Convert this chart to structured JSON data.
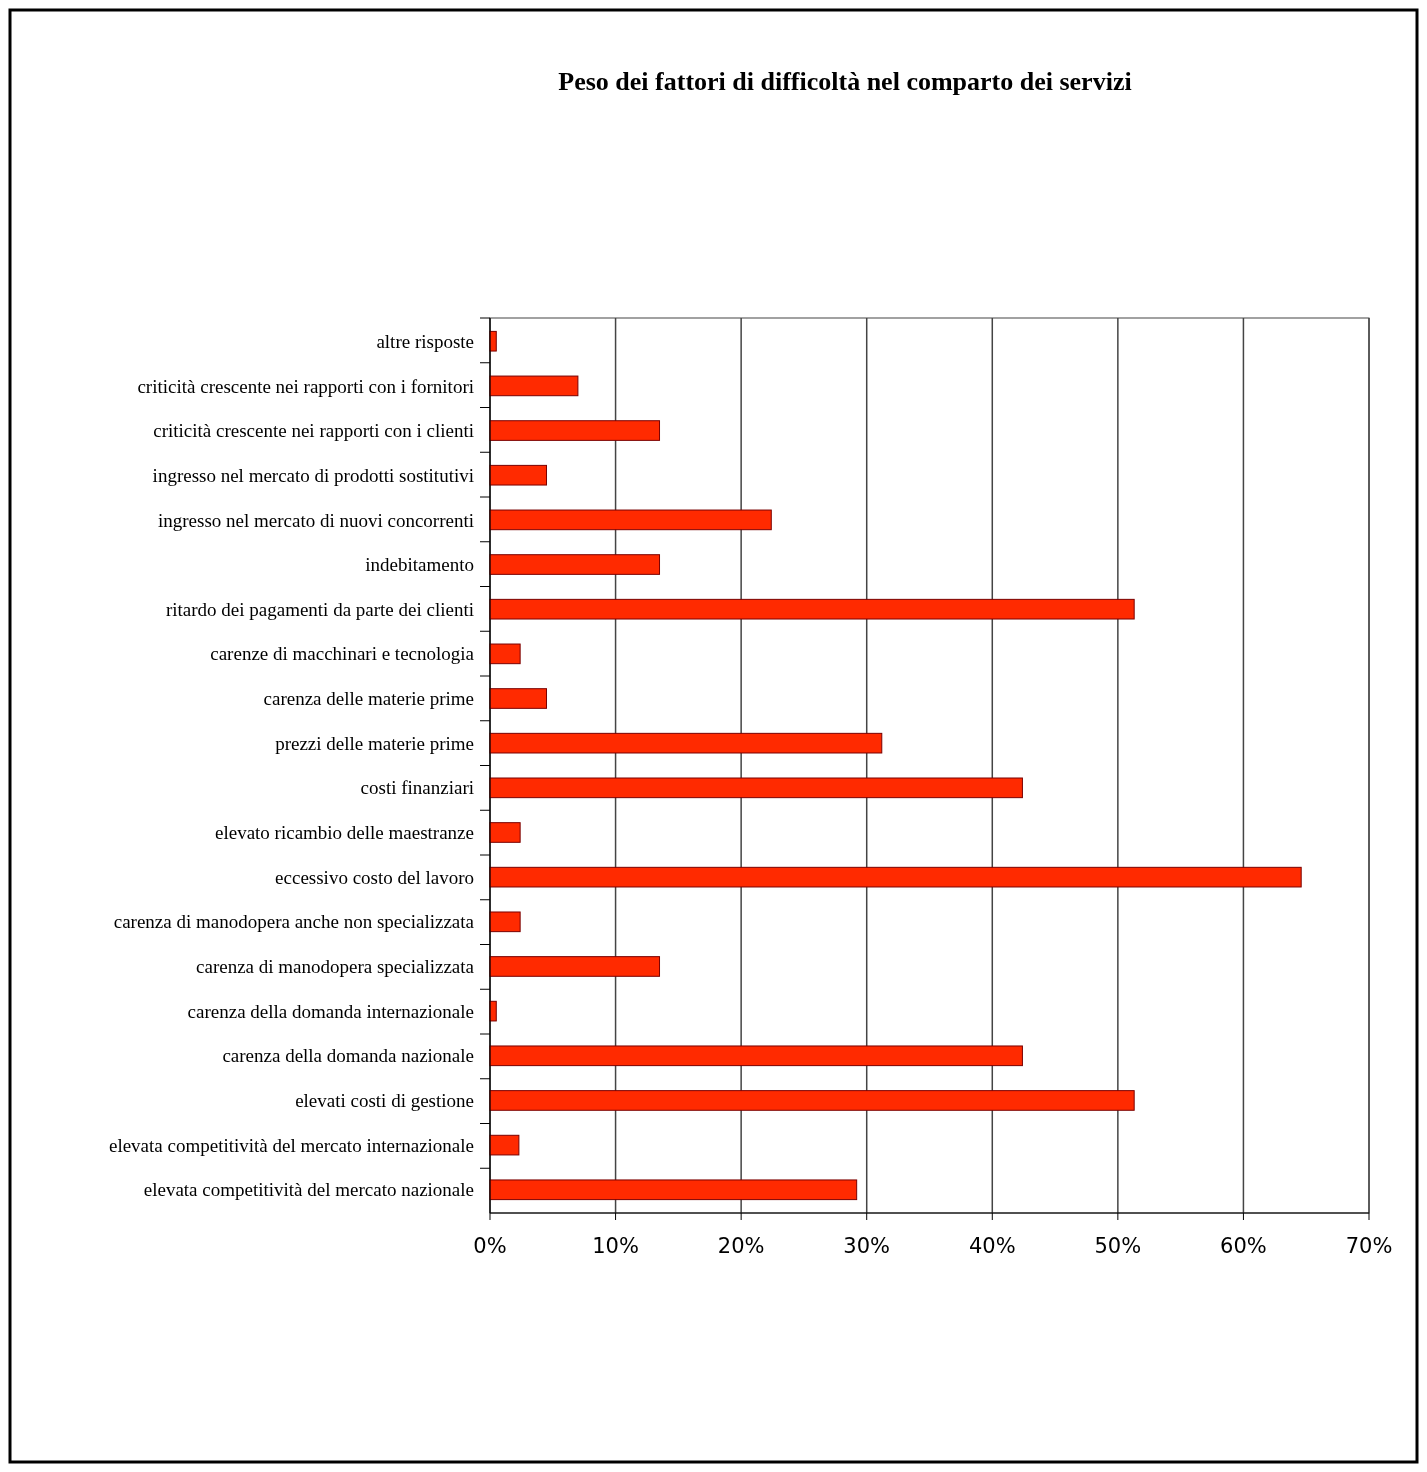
{
  "chart_data": {
    "type": "bar",
    "orientation": "horizontal",
    "title": "Peso dei fattori di difficoltà nel comparto dei servizi",
    "categories": [
      "altre risposte",
      "criticità crescente nei rapporti con i fornitori",
      "criticità crescente nei rapporti con i clienti",
      "ingresso nel mercato di prodotti sostitutivi",
      "ingresso nel mercato di nuovi concorrenti",
      "indebitamento",
      "ritardo dei pagamenti da parte dei clienti",
      "carenze di macchinari e tecnologia",
      "carenza delle materie prime",
      "prezzi delle materie prime",
      "costi finanziari",
      "elevato ricambio delle maestranze",
      "eccessivo costo del lavoro",
      "carenza di manodopera anche non specializzata",
      "carenza di manodopera specializzata",
      "carenza della domanda internazionale",
      "carenza della domanda nazionale",
      "elevati costi di gestione",
      "elevata competitività del mercato internazionale",
      "elevata competitività del mercato nazionale"
    ],
    "values": [
      0.5,
      7,
      13.5,
      4.5,
      22.4,
      13.5,
      51.3,
      2.4,
      4.5,
      31.2,
      42.4,
      2.4,
      64.6,
      2.4,
      13.5,
      0.5,
      42.4,
      51.3,
      2.3,
      29.2
    ],
    "color": "#ff2a00",
    "xlim": [
      0,
      70
    ],
    "xticks": [
      {
        "value": 0,
        "label": "0%"
      },
      {
        "value": 10,
        "label": "10%"
      },
      {
        "value": 20,
        "label": "20%"
      },
      {
        "value": 30,
        "label": "30%"
      },
      {
        "value": 40,
        "label": "40%"
      },
      {
        "value": 50,
        "label": "50%"
      },
      {
        "value": 60,
        "label": "60%"
      },
      {
        "value": 70,
        "label": "70%"
      }
    ],
    "grid": "x"
  }
}
